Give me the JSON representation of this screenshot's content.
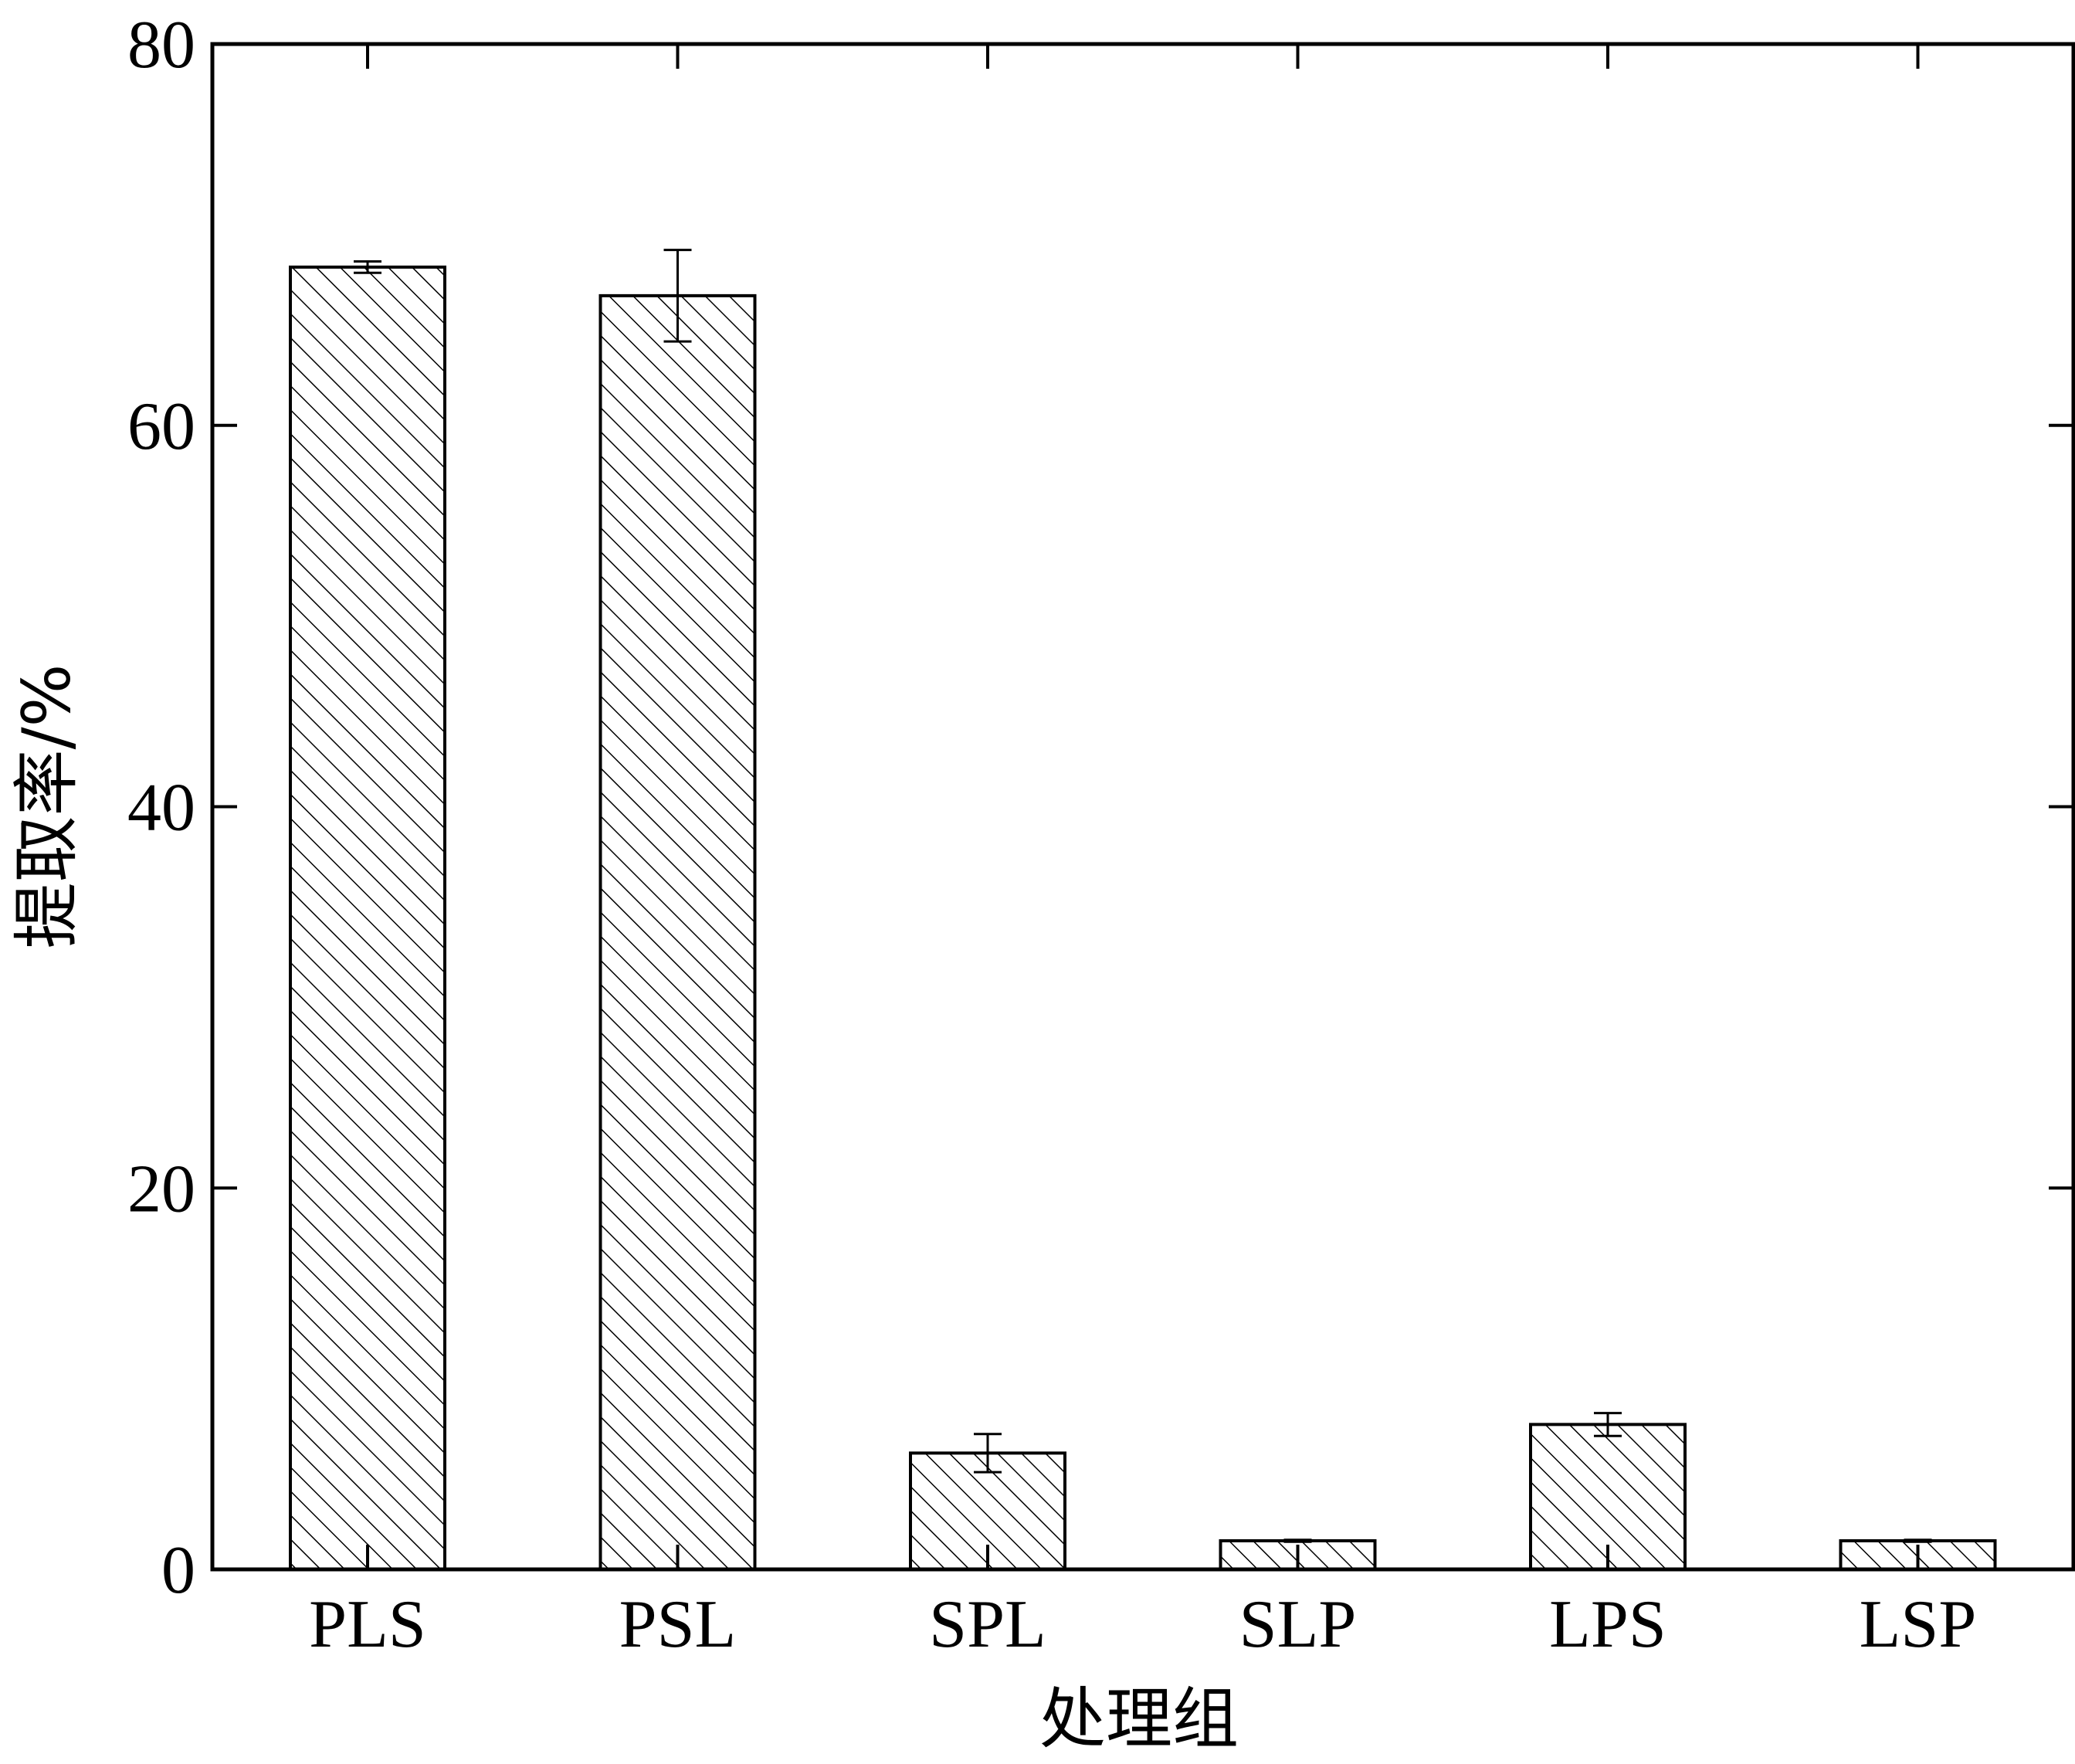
{
  "chart_data": {
    "type": "bar",
    "xlabel": "处理组",
    "ylabel": "提取率/%",
    "categories": [
      "PLS",
      "PSL",
      "SPL",
      "SLP",
      "LPS",
      "LSP"
    ],
    "values": [
      68.3,
      66.8,
      6.1,
      1.5,
      7.6,
      1.5
    ],
    "errors": [
      0.3,
      2.4,
      1.0,
      0.05,
      0.6,
      0.05
    ],
    "ylim": [
      0,
      80
    ],
    "yticks": [
      0,
      20,
      40,
      60,
      80
    ],
    "grid": false,
    "legend": "none",
    "bar_fill": "hatched",
    "bar_stroke": "#000000",
    "background": "#ffffff"
  }
}
